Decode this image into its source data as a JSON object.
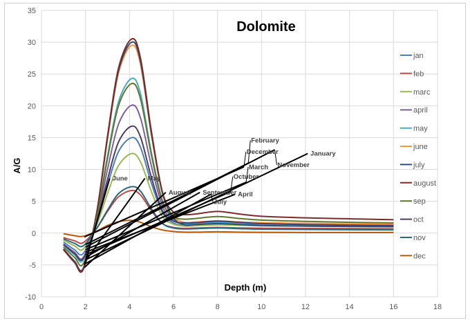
{
  "chart_data": {
    "type": "line",
    "title": "Dolomite",
    "xlabel": "Depth (m)",
    "ylabel": "A/G",
    "xlim": [
      0,
      18
    ],
    "ylim": [
      -10,
      35
    ],
    "xticks": [
      0,
      2,
      4,
      6,
      8,
      10,
      12,
      14,
      16,
      18
    ],
    "yticks": [
      -10,
      -5,
      0,
      5,
      10,
      15,
      20,
      25,
      30,
      35
    ],
    "grid": true,
    "legend_position": "right",
    "x": [
      1,
      1.5,
      1.9,
      2.5,
      3,
      3.5,
      4.1,
      4.5,
      5,
      5.5,
      6,
      6.5,
      7,
      8,
      9,
      10,
      12,
      14,
      16
    ],
    "series": [
      {
        "name": "jan",
        "color": "#4a7ebb",
        "values": [
          -1.4,
          -2.6,
          -3.2,
          1.5,
          7.5,
          12.8,
          15,
          13.5,
          7.8,
          3.2,
          1.6,
          1.2,
          1.25,
          1.4,
          1.25,
          1.15,
          1.1,
          1.05,
          1.0
        ]
      },
      {
        "name": "feb",
        "color": "#be4b48",
        "values": [
          -0.7,
          -1.2,
          -1.5,
          0.7,
          3.4,
          5.7,
          6.7,
          6.0,
          3.5,
          1.5,
          0.9,
          0.75,
          0.8,
          0.9,
          0.82,
          0.77,
          0.74,
          0.72,
          0.7
        ]
      },
      {
        "name": "marc",
        "color": "#98b954",
        "values": [
          -1.1,
          -2.0,
          -2.5,
          1.2,
          6.2,
          10.6,
          12.5,
          11.2,
          6.5,
          2.6,
          1.4,
          1.1,
          1.15,
          1.3,
          1.22,
          1.18,
          1.15,
          1.12,
          1.1
        ]
      },
      {
        "name": "april",
        "color": "#7d60a0",
        "values": [
          -1.7,
          -3.0,
          -3.8,
          2.0,
          10,
          17.1,
          20.1,
          18.1,
          10.5,
          4.2,
          2.0,
          1.5,
          1.55,
          1.7,
          1.6,
          1.5,
          1.42,
          1.35,
          1.3
        ]
      },
      {
        "name": "may",
        "color": "#46aac5",
        "values": [
          -1.9,
          -3.4,
          -4.2,
          2.4,
          12.1,
          20.6,
          24.3,
          21.9,
          12.6,
          5.1,
          2.1,
          1.4,
          1.45,
          1.6,
          1.5,
          1.4,
          1.32,
          1.25,
          1.2
        ]
      },
      {
        "name": "june",
        "color": "#f79646",
        "values": [
          -2.5,
          -4.4,
          -5.5,
          2.9,
          14.7,
          25.1,
          29.5,
          26.5,
          15.3,
          6.2,
          2.6,
          1.7,
          1.75,
          1.9,
          1.75,
          1.65,
          1.55,
          1.47,
          1.4
        ]
      },
      {
        "name": "july",
        "color": "#2c4d75",
        "values": [
          -2.5,
          -4.4,
          -5.5,
          3.0,
          15,
          25.5,
          30,
          27,
          15.6,
          6.3,
          2.4,
          1.3,
          1.35,
          1.5,
          1.35,
          1.2,
          1.1,
          1.05,
          1.0
        ]
      },
      {
        "name": "august",
        "color": "#772c2a",
        "values": [
          -2.6,
          -4.6,
          -5.7,
          3.0,
          15.2,
          25.9,
          30.5,
          27.5,
          15.9,
          6.4,
          3.3,
          2.9,
          3.0,
          3.4,
          3.0,
          2.65,
          2.4,
          2.25,
          2.1
        ]
      },
      {
        "name": "sep",
        "color": "#5f7530",
        "values": [
          -2.2,
          -3.8,
          -4.8,
          2.3,
          11.7,
          20,
          23.5,
          21.1,
          12.2,
          4.9,
          2.6,
          2.2,
          2.3,
          2.6,
          2.3,
          2.05,
          1.85,
          1.7,
          1.6
        ]
      },
      {
        "name": "oct",
        "color": "#4d3b62",
        "values": [
          -1.8,
          -3.2,
          -4.0,
          1.7,
          8.4,
          14.3,
          16.8,
          15.1,
          8.7,
          3.5,
          1.9,
          1.6,
          1.65,
          1.9,
          1.7,
          1.5,
          1.35,
          1.25,
          1.2
        ]
      },
      {
        "name": "nov",
        "color": "#276a7c",
        "values": [
          -0.9,
          -1.6,
          -2.0,
          0.7,
          3.6,
          6.2,
          7.3,
          6.6,
          3.8,
          1.5,
          0.8,
          0.65,
          0.7,
          0.8,
          0.7,
          0.62,
          0.57,
          0.53,
          0.5
        ]
      },
      {
        "name": "dec",
        "color": "#b65708",
        "values": [
          -0.1,
          -0.4,
          -0.5,
          0.3,
          1.2,
          1.8,
          2.0,
          1.7,
          1.0,
          0.5,
          0.25,
          0.15,
          0.15,
          0.2,
          0.15,
          0.12,
          0.1,
          0.1,
          0.1
        ]
      }
    ],
    "annotations": [
      {
        "text": "June",
        "from": [
          1.95,
          -5.0
        ],
        "to": [
          3.1,
          8.6
        ]
      },
      {
        "text": "May",
        "from": [
          2.0,
          -4.4
        ],
        "to": [
          4.7,
          8.6
        ]
      },
      {
        "text": "August",
        "from": [
          1.95,
          -5.4
        ],
        "to": [
          5.65,
          6.4
        ]
      },
      {
        "text": "September",
        "from": [
          2.0,
          -3.8
        ],
        "to": [
          7.2,
          6.4
        ]
      },
      {
        "text": "July",
        "from": [
          2.0,
          -4.8
        ],
        "to": [
          7.7,
          6.1
        ]
      },
      {
        "text": "Octuber",
        "from": [
          2.0,
          -3.4
        ],
        "to": [
          8.6,
          6.5
        ]
      },
      {
        "text": "April",
        "from": [
          2.0,
          -3.0
        ],
        "to": [
          8.8,
          6.1
        ]
      },
      {
        "text": "March",
        "from": [
          2.0,
          -2.6
        ],
        "to": [
          9.3,
          8.0
        ]
      },
      {
        "text": "December",
        "from": [
          1.95,
          -0.6
        ],
        "to": [
          9.2,
          10.4
        ]
      },
      {
        "text": "February",
        "from": [
          2.0,
          -1.8
        ],
        "to": [
          9.4,
          11.0
        ]
      },
      {
        "text": "November",
        "from": [
          2.0,
          -2.2
        ],
        "to": [
          10.6,
          13.1
        ]
      },
      {
        "text": "January",
        "from": [
          2.0,
          -4.2
        ],
        "to": [
          12.1,
          12.5
        ]
      }
    ]
  }
}
